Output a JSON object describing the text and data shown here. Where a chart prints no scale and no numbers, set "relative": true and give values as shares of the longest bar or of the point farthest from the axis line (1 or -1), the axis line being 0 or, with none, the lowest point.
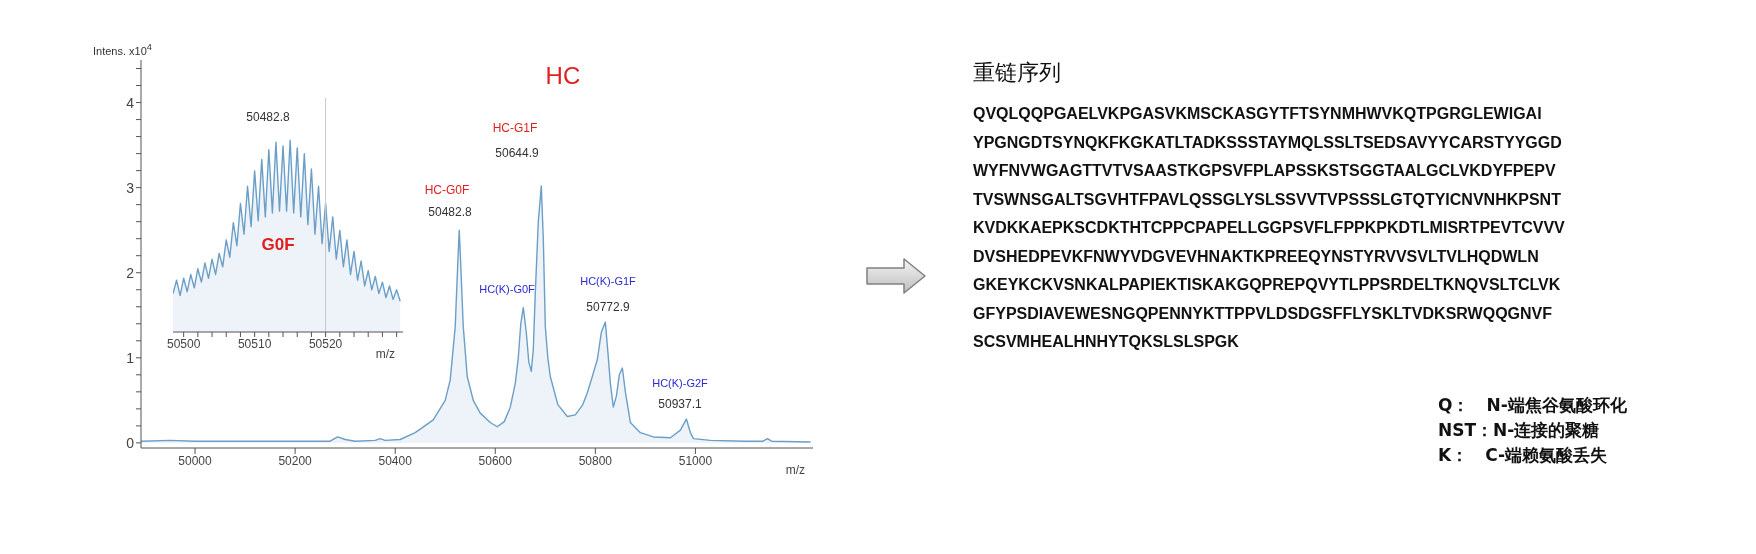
{
  "chart_data": [
    {
      "type": "area",
      "title": "HC",
      "xlabel": "m/z",
      "ylabel": "Intens. x10$^{4}$",
      "color": "#6b9fc8",
      "x": [
        49892,
        49950,
        50000,
        50100,
        50200,
        50270,
        50285,
        50300,
        50320,
        50360,
        50370,
        50380,
        50410,
        50440,
        50476,
        50500,
        50510,
        50520,
        50525,
        50528,
        50531,
        50536,
        50544,
        50556,
        50570,
        50590,
        50604,
        50618,
        50630,
        50640,
        50646,
        50651,
        50656,
        50662,
        50667,
        50672,
        50676,
        50680,
        50686,
        50692,
        50696,
        50700,
        50705,
        50710,
        50725,
        50744,
        50760,
        50775,
        50784,
        50795,
        50804,
        50812,
        50820,
        50826,
        50830,
        50836,
        50842,
        50848,
        50854,
        50860,
        50870,
        50890,
        50916,
        50950,
        50970,
        50982,
        50990,
        50996,
        51030,
        51100,
        51135,
        51144,
        51152,
        51230
      ],
      "values": [
        0.02,
        0.03,
        0.02,
        0.02,
        0.02,
        0.02,
        0.07,
        0.04,
        0.02,
        0.03,
        0.05,
        0.03,
        0.04,
        0.12,
        0.27,
        0.5,
        0.74,
        1.37,
        2.1,
        2.5,
        2.1,
        1.37,
        0.78,
        0.5,
        0.35,
        0.24,
        0.19,
        0.25,
        0.42,
        0.7,
        1.0,
        1.4,
        1.59,
        1.3,
        0.95,
        0.84,
        1.1,
        1.76,
        2.6,
        3.02,
        2.4,
        1.37,
        1.0,
        0.78,
        0.45,
        0.31,
        0.33,
        0.45,
        0.59,
        0.8,
        0.98,
        1.3,
        1.42,
        1.0,
        0.7,
        0.42,
        0.55,
        0.8,
        0.88,
        0.6,
        0.24,
        0.12,
        0.07,
        0.06,
        0.15,
        0.28,
        0.12,
        0.05,
        0.03,
        0.02,
        0.02,
        0.05,
        0.02,
        0.01
      ],
      "xlim": [
        49892,
        51235
      ],
      "ylim": [
        -0.06,
        4.5
      ],
      "xticks": [
        50000,
        50200,
        50400,
        50600,
        50800,
        51000
      ],
      "yticks": [
        0,
        {
          "value": 0.2,
          "label": null
        },
        {
          "value": 0.4,
          "label": null
        },
        {
          "value": 0.6,
          "label": null
        },
        {
          "value": 0.8,
          "label": null
        },
        1,
        {
          "value": 1.2,
          "label": null
        },
        {
          "value": 1.4,
          "label": null
        },
        {
          "value": 1.6,
          "label": null
        },
        {
          "value": 1.8,
          "label": null
        },
        2,
        {
          "value": 2.2,
          "label": null
        },
        {
          "value": 2.4,
          "label": null
        },
        {
          "value": 2.6,
          "label": null
        },
        {
          "value": 2.8,
          "label": null
        },
        3,
        {
          "value": 3.2,
          "label": null
        },
        {
          "value": 3.4,
          "label": null
        },
        {
          "value": 3.6,
          "label": null
        },
        {
          "value": 3.8,
          "label": null
        },
        4,
        {
          "value": 4.2,
          "label": null
        },
        {
          "value": 4.4,
          "label": null
        }
      ],
      "annotations": [
        "HC-G0F",
        "50482.8",
        "HC(K)-G0F",
        "HC-G1F",
        "50644.9",
        "HC(K)-G1F",
        "50772.9",
        "HC(K)-G2F",
        "50937.1"
      ]
    },
    {
      "type": "area",
      "relative": true,
      "xlabel": "m/z",
      "color": "#6b9fc8",
      "x": [
        50498.5,
        50499,
        50499.5,
        50500,
        50500.5,
        50501,
        50501.5,
        50502,
        50502.5,
        50503,
        50503.5,
        50504,
        50504.5,
        50505,
        50505.5,
        50506,
        50506.5,
        50507,
        50507.5,
        50508,
        50508.5,
        50509,
        50509.5,
        50510,
        50510.5,
        50511,
        50511.5,
        50512,
        50512.5,
        50513,
        50513.5,
        50514,
        50514.5,
        50515,
        50515.5,
        50516,
        50516.5,
        50517,
        50517.5,
        50518,
        50518.5,
        50519,
        50519.5,
        50520,
        50520.5,
        50521,
        50521.5,
        50522,
        50522.5,
        50523,
        50523.5,
        50524,
        50524.5,
        50525,
        50525.5,
        50526,
        50526.5,
        50527,
        50527.5,
        50528,
        50528.5,
        50529,
        50529.5,
        50530,
        50530.5
      ],
      "values": [
        0.2,
        0.27,
        0.19,
        0.28,
        0.21,
        0.3,
        0.23,
        0.33,
        0.26,
        0.36,
        0.28,
        0.38,
        0.3,
        0.41,
        0.34,
        0.48,
        0.39,
        0.57,
        0.45,
        0.67,
        0.51,
        0.76,
        0.55,
        0.84,
        0.58,
        0.9,
        0.6,
        0.95,
        0.62,
        0.99,
        0.63,
        0.97,
        0.63,
        1.0,
        0.62,
        0.96,
        0.6,
        0.93,
        0.56,
        0.85,
        0.51,
        0.76,
        0.46,
        0.67,
        0.42,
        0.6,
        0.38,
        0.53,
        0.34,
        0.48,
        0.3,
        0.42,
        0.27,
        0.37,
        0.24,
        0.32,
        0.22,
        0.29,
        0.2,
        0.26,
        0.18,
        0.24,
        0.17,
        0.22,
        0.16
      ],
      "xlim": [
        50498.5,
        50530.9
      ],
      "xticks": [
        50500,
        {
          "value": 50502,
          "label": null
        },
        {
          "value": 50504,
          "label": null
        },
        {
          "value": 50506,
          "label": null
        },
        {
          "value": 50508,
          "label": null
        },
        50510,
        {
          "value": 50512,
          "label": null
        },
        {
          "value": 50514,
          "label": null
        },
        {
          "value": 50516,
          "label": null
        },
        {
          "value": 50518,
          "label": null
        },
        50520,
        {
          "value": 50522,
          "label": null
        },
        {
          "value": 50524,
          "label": null
        },
        {
          "value": 50526,
          "label": null
        },
        {
          "value": 50528,
          "label": null
        },
        {
          "value": 50530,
          "label": null
        }
      ],
      "ref_lines": [
        {
          "axis": "x",
          "value": 50520,
          "color": "#c8c8c8"
        }
      ],
      "annotations": [
        "50482.8",
        "G0F"
      ]
    },
    {
      "type": "other",
      "title": "重链序列",
      "annotations": [
        "QVQLQQPGAELVKPGASVKMSCKASGYTFTSYNMHWVKQTPGRGLEWIGAI",
        "YPGNGDTSYNQKFKGKATLTADKSSSTAYMQLSSLTSEDSAVYYCARSTYYGGD",
        "WYFNVWGAGTTVTVSAASTKGPSVFPLAPSSKSTSGGTAALGCLVKDYFPEPV",
        "TVSWNSGALTSGVHTFPAVLQSSGLYSLSSVVTVPSSSLGTQTYICNVNHKPSNT",
        "KVDKKAEPKSCDKTHTCPPCPAPELLGGPSVFLFPPKPKDTLMISRTPEVTCVVV",
        "DVSHEDPEVKFNWYVDGVEVHNAKTKPREEQYNSTYRVVSVLTVLHQDWLN",
        "GKEYKCKVSNKALPAPIEKTISKAKGQPREPQVYTLPPSRDELTKNQVSLTCLVK",
        "GFYPSDIAVEWESNGQPENNYKTTPPVLDSDGSFFLYSKLTVDKSRWQQGNVF",
        "SCSVMHEALHNHYTQKSLSLSPGK"
      ]
    },
    {
      "type": "other",
      "annotations": [
        "Q：　N-端焦谷氨酸环化",
        "NST：N-连接的聚糖",
        "K：　C-端赖氨酸丢失"
      ]
    }
  ]
}
